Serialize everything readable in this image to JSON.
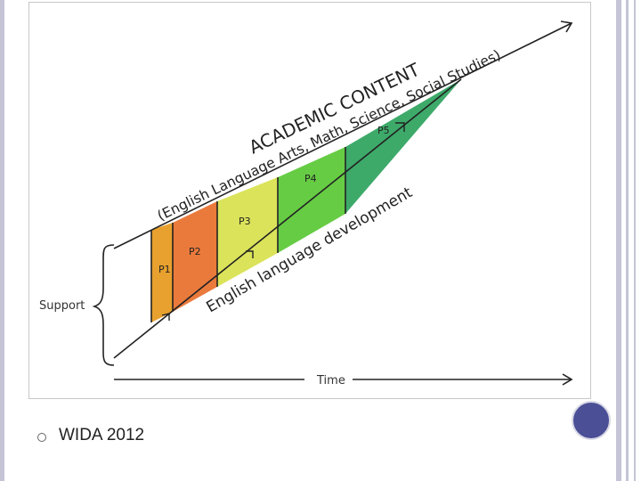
{
  "diagram": {
    "top_label": "ACADEMIC CONTENT",
    "top_sublabel": "(English Language Arts, Math, Science, Social Studies)",
    "bottom_label": "English language development",
    "support_label": "Support",
    "time_label": "Time",
    "levels": [
      {
        "label": "P1",
        "color": "#e8a12e"
      },
      {
        "label": "P2",
        "color": "#ea7a3c"
      },
      {
        "label": "P3",
        "color": "#dbe35a"
      },
      {
        "label": "P4",
        "color": "#66cc44"
      },
      {
        "label": "P5",
        "color": "#3daa6a"
      }
    ]
  },
  "caption": "WIDA 2012",
  "theme": {
    "accent": "#4b4f96"
  }
}
